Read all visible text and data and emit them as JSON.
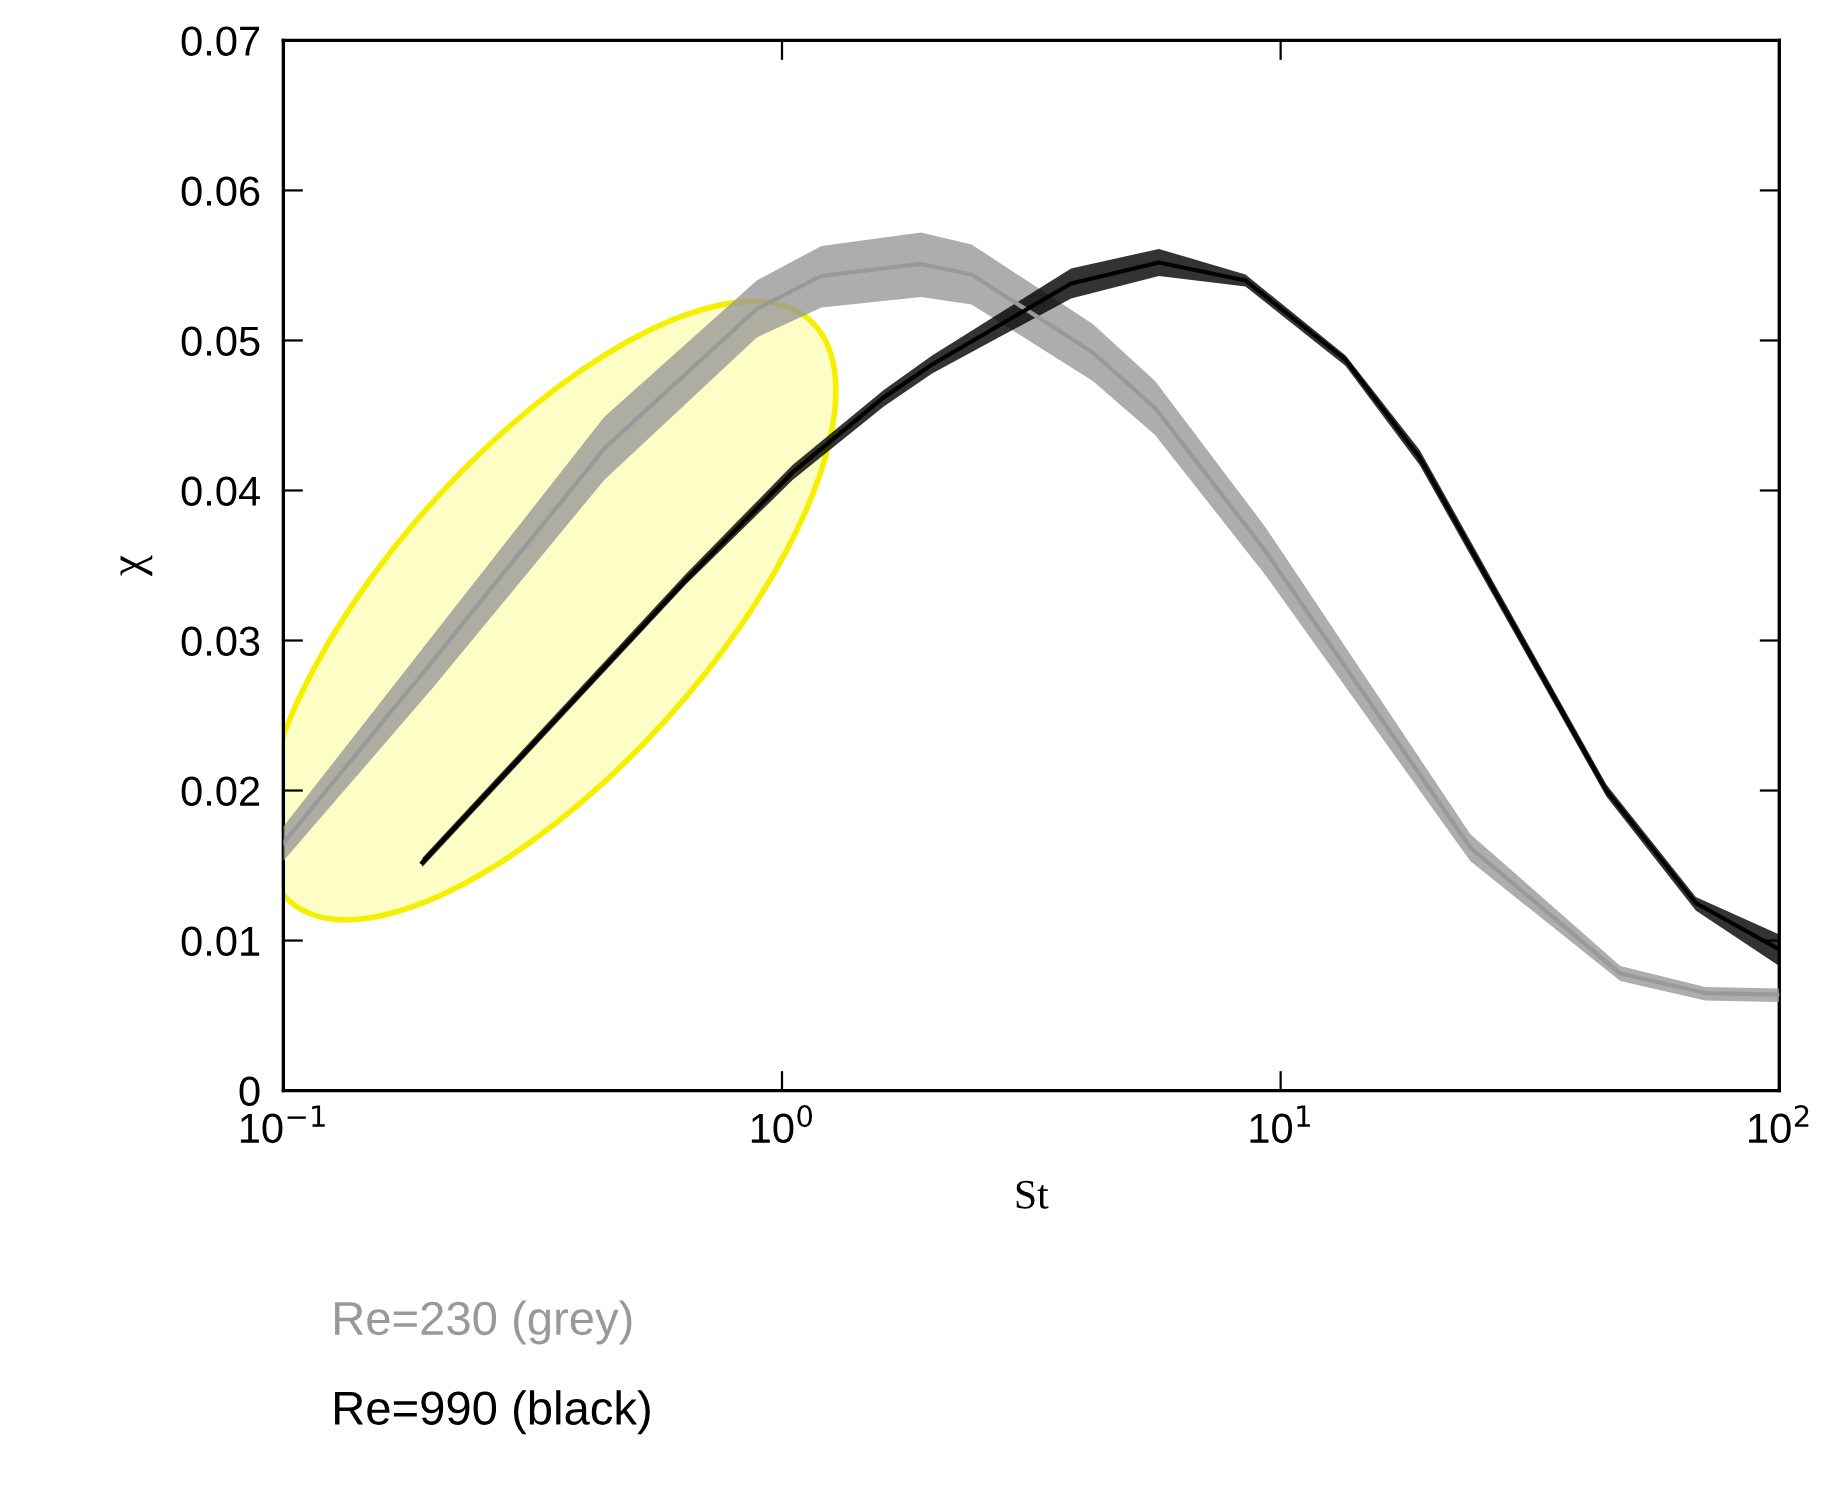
{
  "chart_data": {
    "type": "line",
    "xlabel": "St",
    "ylabel": "χ",
    "log": "x",
    "xlim": [
      0.1,
      100
    ],
    "xticks": [
      {
        "value": 0.1,
        "label": "10$^{−1}$"
      },
      {
        "value": 1,
        "label": "10$^{0}$"
      },
      {
        "value": 10,
        "label": "10$^{1}$"
      },
      {
        "value": 100,
        "label": "10$^{2}$"
      }
    ],
    "ylim": [
      0,
      0.07
    ],
    "yticks": [
      0,
      0.01,
      0.02,
      0.03,
      0.04,
      0.05,
      0.06,
      0.07
    ],
    "grid": false,
    "legend": "bottom",
    "series": [
      {
        "name": "Re=230 (grey)",
        "color": "#999999",
        "x": [
          0.1,
          0.2,
          0.44,
          0.89,
          1.2,
          1.9,
          2.4,
          4.2,
          5.6,
          9.3,
          24,
          48,
          71,
          100
        ],
        "values": [
          0.0165,
          0.0287,
          0.0428,
          0.0521,
          0.0543,
          0.0551,
          0.0544,
          0.0492,
          0.0455,
          0.036,
          0.0162,
          0.0078,
          0.0065,
          0.0064
        ],
        "lower": [
          0.0153,
          0.0269,
          0.0407,
          0.0502,
          0.0522,
          0.0529,
          0.0524,
          0.0473,
          0.0437,
          0.0344,
          0.0153,
          0.0073,
          0.006,
          0.0059
        ],
        "upper": [
          0.0176,
          0.0304,
          0.0449,
          0.054,
          0.0563,
          0.0572,
          0.0564,
          0.0511,
          0.0473,
          0.0376,
          0.0171,
          0.0083,
          0.0069,
          0.0068
        ]
      },
      {
        "name": "Re=990 (black)",
        "color": "#000000",
        "x": [
          0.19,
          0.64,
          1.05,
          1.6,
          2.0,
          3.8,
          5.7,
          8.5,
          13.5,
          19,
          45,
          68,
          100
        ],
        "values": [
          0.0152,
          0.034,
          0.0412,
          0.0462,
          0.0484,
          0.0538,
          0.0552,
          0.054,
          0.0487,
          0.0422,
          0.02,
          0.0125,
          0.0094
        ],
        "lower": [
          0.0149,
          0.0337,
          0.0407,
          0.0456,
          0.0478,
          0.0528,
          0.0543,
          0.0536,
          0.0483,
          0.0417,
          0.0196,
          0.012,
          0.0083
        ],
        "upper": [
          0.0155,
          0.0344,
          0.0417,
          0.0467,
          0.049,
          0.0548,
          0.0561,
          0.0544,
          0.049,
          0.0427,
          0.0204,
          0.0129,
          0.0104
        ]
      }
    ]
  }
}
